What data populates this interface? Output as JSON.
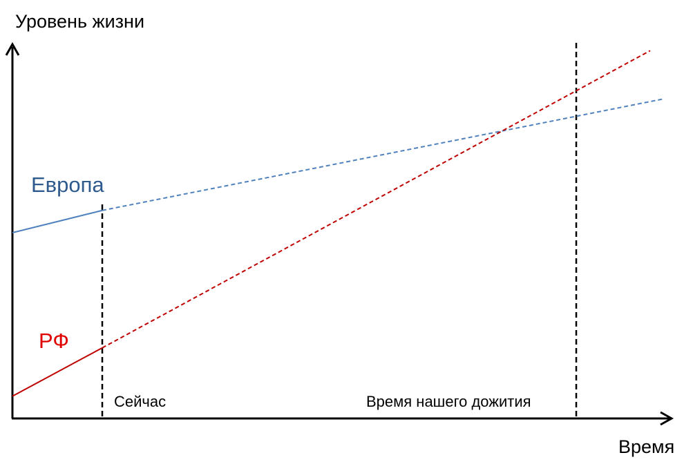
{
  "axes": {
    "y_label": "Уровень жизни",
    "x_label": "Время"
  },
  "series": [
    {
      "name": "Европа",
      "color": "#2e5a8e",
      "line_color": "#4f81bd",
      "start_level": 0.5,
      "now_level": 0.56,
      "projection_end_level": 0.86
    },
    {
      "name": "РФ",
      "color": "#e00000",
      "line_color": "#c00000",
      "start_level": 0.06,
      "now_level": 0.19,
      "projection_end_level": 0.99
    }
  ],
  "markers": {
    "now": "Сейчас",
    "survival": "Время нашего дожития"
  }
}
